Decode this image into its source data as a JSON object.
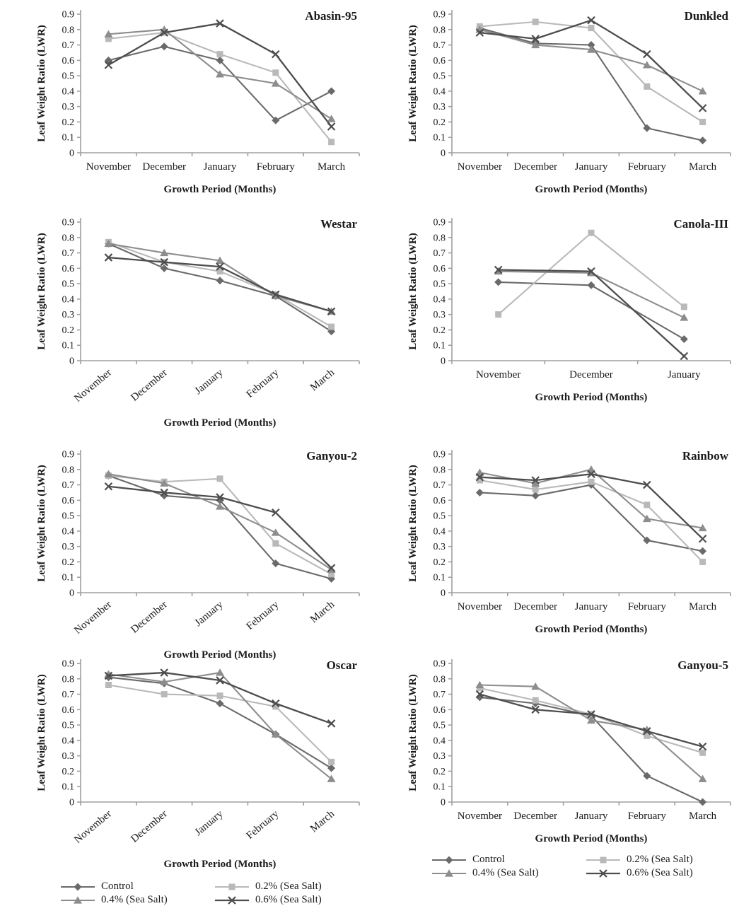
{
  "page": {
    "background": "#ffffff"
  },
  "axes": {
    "ylabel": "Leaf Weight Ratio (LWR)",
    "xlabel": "Growth Period (Months)",
    "ylim": [
      0,
      0.9
    ],
    "yticks": [
      0,
      0.1,
      0.2,
      0.3,
      0.4,
      0.5,
      0.6,
      0.7,
      0.8,
      0.9
    ],
    "grid": false,
    "axis_color": "#a0a0a0",
    "tick_label_color": "#1a1a1a"
  },
  "series_meta": [
    {
      "name": "Control",
      "marker": "diamond",
      "color": "#6a6a6a",
      "line_width": 2.1
    },
    {
      "name": "0.2% (Sea Salt)",
      "marker": "square",
      "color": "#b9b9b9",
      "line_width": 2.1
    },
    {
      "name": "0.4% (Sea Salt)",
      "marker": "triangle",
      "color": "#8d8d8d",
      "line_width": 2.1
    },
    {
      "name": "0.6% (Sea Salt)",
      "marker": "x",
      "color": "#4d4d4d",
      "line_width": 2.3
    }
  ],
  "legend": {
    "position": "bottom",
    "items": [
      "Control",
      "0.2% (Sea Salt)",
      "0.4% (Sea Salt)",
      "0.6% (Sea Salt)"
    ]
  },
  "chart_data": [
    {
      "type": "line",
      "title": "Abasin-95",
      "categories": [
        "November",
        "December",
        "January",
        "February",
        "March"
      ],
      "rotated_xticklabels": false,
      "ylim": [
        0,
        0.9
      ],
      "series": [
        {
          "name": "Control",
          "values": [
            0.6,
            0.69,
            0.6,
            0.21,
            0.4
          ]
        },
        {
          "name": "0.2% (Sea Salt)",
          "values": [
            0.74,
            0.78,
            0.64,
            0.52,
            0.07
          ]
        },
        {
          "name": "0.4% (Sea Salt)",
          "values": [
            0.77,
            0.8,
            0.51,
            0.45,
            0.22
          ]
        },
        {
          "name": "0.6% (Sea Salt)",
          "values": [
            0.57,
            0.78,
            0.84,
            0.64,
            0.17
          ]
        }
      ]
    },
    {
      "type": "line",
      "title": "Dunkled",
      "categories": [
        "November",
        "December",
        "January",
        "February",
        "March"
      ],
      "rotated_xticklabels": false,
      "ylim": [
        0,
        0.9
      ],
      "series": [
        {
          "name": "Control",
          "values": [
            0.81,
            0.71,
            0.7,
            0.16,
            0.08
          ]
        },
        {
          "name": "0.2% (Sea Salt)",
          "values": [
            0.82,
            0.85,
            0.81,
            0.43,
            0.2
          ]
        },
        {
          "name": "0.4% (Sea Salt)",
          "values": [
            0.8,
            0.7,
            0.67,
            0.57,
            0.4
          ]
        },
        {
          "name": "0.6% (Sea Salt)",
          "values": [
            0.78,
            0.74,
            0.86,
            0.64,
            0.29
          ]
        }
      ]
    },
    {
      "type": "line",
      "title": "Westar",
      "categories": [
        "November",
        "December",
        "January",
        "February",
        "March"
      ],
      "rotated_xticklabels": true,
      "ylim": [
        0,
        0.9
      ],
      "series": [
        {
          "name": "Control",
          "values": [
            0.76,
            0.6,
            0.52,
            0.42,
            0.19
          ]
        },
        {
          "name": "0.2% (Sea Salt)",
          "values": [
            0.77,
            0.64,
            0.58,
            0.43,
            0.22
          ]
        },
        {
          "name": "0.4% (Sea Salt)",
          "values": [
            0.76,
            0.7,
            0.65,
            0.42,
            0.32
          ]
        },
        {
          "name": "0.6% (Sea Salt)",
          "values": [
            0.67,
            0.64,
            0.61,
            0.43,
            0.32
          ]
        }
      ]
    },
    {
      "type": "line",
      "title": "Canola-III",
      "categories": [
        "November",
        "December",
        "January"
      ],
      "rotated_xticklabels": false,
      "ylim": [
        0,
        0.9
      ],
      "series": [
        {
          "name": "Control",
          "values": [
            0.51,
            0.49,
            0.14
          ]
        },
        {
          "name": "0.2% (Sea Salt)",
          "values": [
            0.3,
            0.83,
            0.35
          ]
        },
        {
          "name": "0.4% (Sea Salt)",
          "values": [
            0.58,
            0.57,
            0.28
          ]
        },
        {
          "name": "0.6% (Sea Salt)",
          "values": [
            0.59,
            0.58,
            0.03
          ]
        }
      ]
    },
    {
      "type": "line",
      "title": "Ganyou-2",
      "categories": [
        "November",
        "December",
        "January",
        "February",
        "March"
      ],
      "rotated_xticklabels": true,
      "ylim": [
        0,
        0.9
      ],
      "series": [
        {
          "name": "Control",
          "values": [
            0.76,
            0.63,
            0.6,
            0.19,
            0.09
          ]
        },
        {
          "name": "0.2% (Sea Salt)",
          "values": [
            0.76,
            0.72,
            0.74,
            0.32,
            0.12
          ]
        },
        {
          "name": "0.4% (Sea Salt)",
          "values": [
            0.77,
            0.71,
            0.56,
            0.39,
            0.15
          ]
        },
        {
          "name": "0.6% (Sea Salt)",
          "values": [
            0.69,
            0.65,
            0.62,
            0.52,
            0.16
          ]
        }
      ]
    },
    {
      "type": "line",
      "title": "Rainbow",
      "categories": [
        "November",
        "December",
        "January",
        "February",
        "March"
      ],
      "rotated_xticklabels": false,
      "ylim": [
        0,
        0.9
      ],
      "series": [
        {
          "name": "Control",
          "values": [
            0.65,
            0.63,
            0.7,
            0.34,
            0.27
          ]
        },
        {
          "name": "0.2% (Sea Salt)",
          "values": [
            0.73,
            0.67,
            0.72,
            0.57,
            0.2
          ]
        },
        {
          "name": "0.4% (Sea Salt)",
          "values": [
            0.78,
            0.71,
            0.8,
            0.48,
            0.42
          ]
        },
        {
          "name": "0.6% (Sea Salt)",
          "values": [
            0.75,
            0.73,
            0.77,
            0.7,
            0.35
          ]
        }
      ]
    },
    {
      "type": "line",
      "title": "Oscar",
      "categories": [
        "November",
        "December",
        "January",
        "February",
        "March"
      ],
      "rotated_xticklabels": true,
      "ylim": [
        0,
        0.9
      ],
      "series": [
        {
          "name": "Control",
          "values": [
            0.81,
            0.77,
            0.64,
            0.44,
            0.22
          ]
        },
        {
          "name": "0.2% (Sea Salt)",
          "values": [
            0.76,
            0.7,
            0.69,
            0.62,
            0.26
          ]
        },
        {
          "name": "0.4% (Sea Salt)",
          "values": [
            0.83,
            0.78,
            0.84,
            0.44,
            0.15
          ]
        },
        {
          "name": "0.6% (Sea Salt)",
          "values": [
            0.82,
            0.84,
            0.79,
            0.64,
            0.51
          ]
        }
      ]
    },
    {
      "type": "line",
      "title": "Ganyou-5",
      "categories": [
        "November",
        "December",
        "January",
        "February",
        "March"
      ],
      "rotated_xticklabels": false,
      "ylim": [
        0,
        0.9
      ],
      "series": [
        {
          "name": "Control",
          "values": [
            0.68,
            0.64,
            0.56,
            0.17,
            0.0
          ]
        },
        {
          "name": "0.2% (Sea Salt)",
          "values": [
            0.74,
            0.66,
            0.57,
            0.43,
            0.32
          ]
        },
        {
          "name": "0.4% (Sea Salt)",
          "values": [
            0.76,
            0.75,
            0.53,
            0.47,
            0.15
          ]
        },
        {
          "name": "0.6% (Sea Salt)",
          "values": [
            0.7,
            0.6,
            0.57,
            0.46,
            0.36
          ]
        }
      ]
    }
  ]
}
